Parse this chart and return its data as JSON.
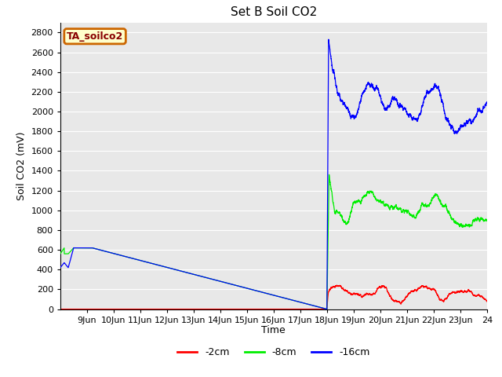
{
  "title": "Set B Soil CO2",
  "ylabel": "Soil CO2 (mV)",
  "xlabel": "Time",
  "xlim_days": [
    8.0,
    24.0
  ],
  "ylim": [
    0,
    2900
  ],
  "yticks": [
    0,
    200,
    400,
    600,
    800,
    1000,
    1200,
    1400,
    1600,
    1800,
    2000,
    2200,
    2400,
    2600,
    2800
  ],
  "xtick_positions": [
    9,
    10,
    11,
    12,
    13,
    14,
    15,
    16,
    17,
    18,
    19,
    20,
    21,
    22,
    23,
    24
  ],
  "xtick_labels": [
    "9Jun",
    "10Jun",
    "11Jun",
    "12Jun",
    "13Jun",
    "14Jun",
    "15Jun",
    "16Jun",
    "17Jun",
    "18Jun",
    "19Jun",
    "20Jun",
    "21Jun",
    "22Jun",
    "23Jun",
    "24"
  ],
  "bg_color": "#e8e8e8",
  "grid_color": "#ffffff",
  "line_red": "#ff0000",
  "line_green": "#00ee00",
  "line_blue": "#0000ff",
  "legend_label": "TA_soilco2",
  "legend_bg": "#ffffcc",
  "legend_border": "#cc6600",
  "title_fontsize": 11,
  "axis_fontsize": 9,
  "tick_fontsize": 8
}
